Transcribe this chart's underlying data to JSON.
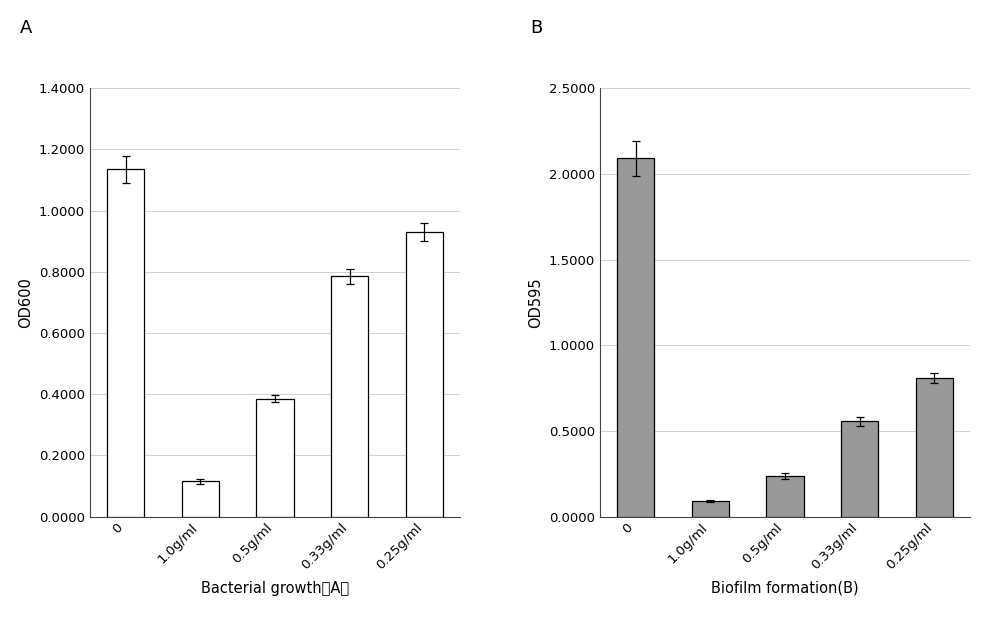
{
  "panel_A": {
    "label": "A",
    "categories": [
      "0",
      "1.0g/ml",
      "0.5g/ml",
      "0.33g/ml",
      "0.25g/ml"
    ],
    "values": [
      1.135,
      0.115,
      0.385,
      0.785,
      0.93
    ],
    "errors": [
      0.045,
      0.008,
      0.012,
      0.025,
      0.03
    ],
    "bar_color": "#ffffff",
    "bar_edgecolor": "#000000",
    "ylabel": "OD600",
    "xlabel": "Bacterial growth（A）",
    "ylim": [
      0,
      1.4
    ],
    "yticks": [
      0.0,
      0.2,
      0.4,
      0.6,
      0.8,
      1.0,
      1.2,
      1.4
    ],
    "ytick_labels": [
      "0.0000",
      "0.2000",
      "0.4000",
      "0.6000",
      "0.8000",
      "1.0000",
      "1.2000",
      "1.4000"
    ]
  },
  "panel_B": {
    "label": "B",
    "categories": [
      "0",
      "1.0g/ml",
      "0.5g/ml",
      "0.33g/ml",
      "0.25g/ml"
    ],
    "values": [
      2.09,
      0.09,
      0.235,
      0.555,
      0.81
    ],
    "errors": [
      0.1,
      0.005,
      0.018,
      0.025,
      0.028
    ],
    "bar_color": "#999999",
    "bar_edgecolor": "#000000",
    "ylabel": "OD595",
    "xlabel": "Biofilm formation(B)",
    "ylim": [
      0,
      2.5
    ],
    "yticks": [
      0.0,
      0.5,
      1.0,
      1.5,
      2.0,
      2.5
    ],
    "ytick_labels": [
      "0.0000",
      "0.5000",
      "1.0000",
      "1.5000",
      "2.0000",
      "2.5000"
    ]
  },
  "background_color": "#ffffff",
  "figure_label_fontsize": 13,
  "axis_label_fontsize": 10.5,
  "tick_label_fontsize": 9.5,
  "bar_width": 0.5,
  "capsize": 3
}
